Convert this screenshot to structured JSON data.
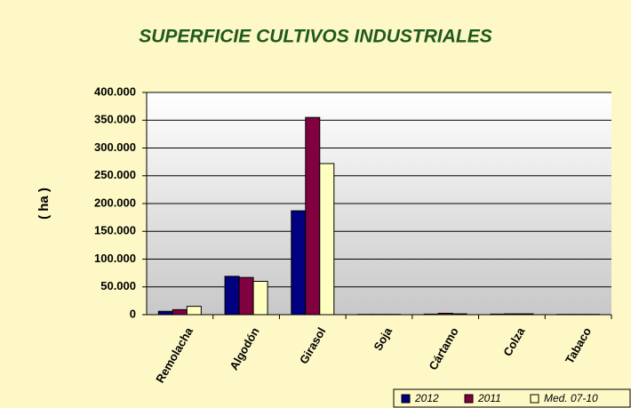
{
  "chart_data": {
    "type": "bar",
    "title": "SUPERFICIE CULTIVOS INDUSTRIALES",
    "y_label": "( ha )",
    "categories": [
      "Remolacha",
      "Algodón",
      "Girasol",
      "Soja",
      "Cártamo",
      "Colza",
      "Tabaco"
    ],
    "series": [
      {
        "name": "2012",
        "color": "#000080",
        "values": [
          6000,
          69000,
          187000,
          500,
          1000,
          1000,
          500
        ]
      },
      {
        "name": "2011",
        "color": "#800040",
        "values": [
          9000,
          67000,
          355000,
          500,
          2500,
          1500,
          500
        ]
      },
      {
        "name": "Med. 07-10",
        "color": "#ffffc0",
        "values": [
          15000,
          60000,
          272000,
          500,
          1500,
          1500,
          500
        ]
      }
    ],
    "ylim": [
      0,
      400000
    ],
    "yticks": [
      0,
      {
        "value": 50000,
        "label": "50.000"
      },
      {
        "value": 100000,
        "label": "100.000"
      },
      {
        "value": 150000,
        "label": "150.000"
      },
      {
        "value": 200000,
        "label": "200.000"
      },
      {
        "value": 250000,
        "label": "250.000"
      },
      {
        "value": 300000,
        "label": "300.000"
      },
      {
        "value": 350000,
        "label": "350.000"
      },
      {
        "value": 400000,
        "label": "400.000"
      }
    ],
    "grid": true,
    "legend": "bottom-right"
  }
}
